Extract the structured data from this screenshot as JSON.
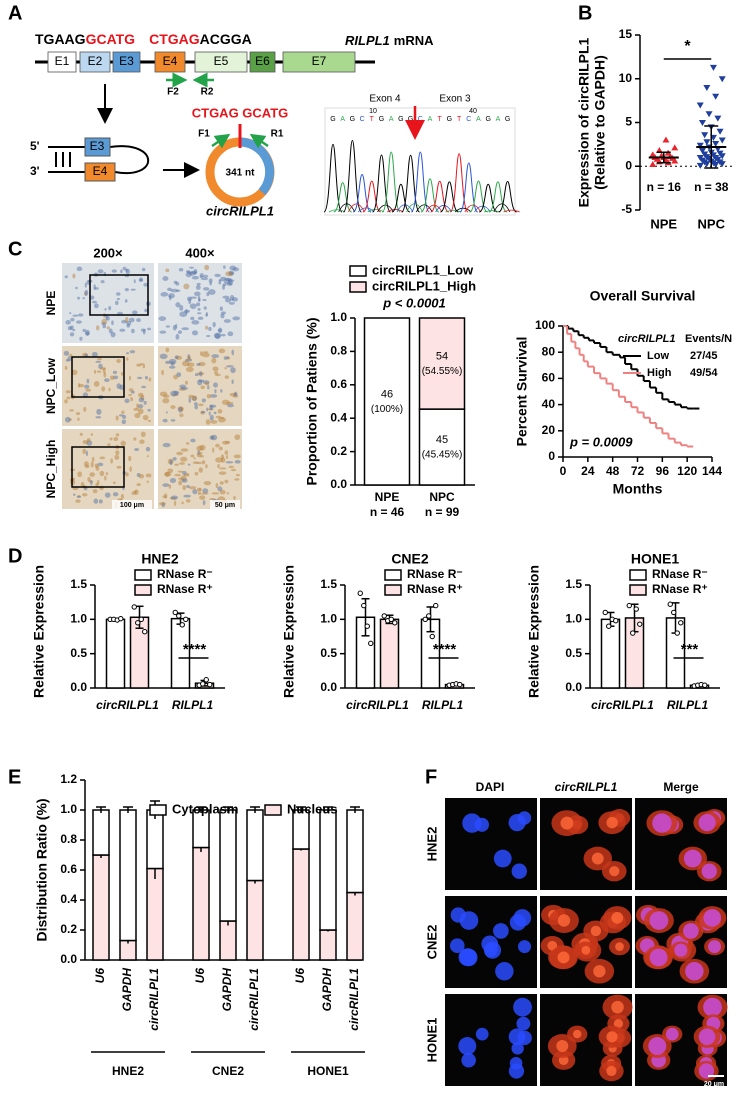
{
  "panel_labels": [
    "A",
    "B",
    "C",
    "D",
    "E",
    "F"
  ],
  "panel_a": {
    "sequence": [
      {
        "text": "TGAAG",
        "color": "#000000"
      },
      {
        "text": "GCATG",
        "color": "#e8141b"
      },
      {
        "text": "CTGAG",
        "color": "#e8141b"
      },
      {
        "text": "ACGGA",
        "color": "#000000"
      }
    ],
    "mrna_gene": "RILPL1",
    "mrna_label": "mRNA",
    "exons": [
      "E1",
      "E2",
      "E3",
      "E4",
      "E5",
      "E6",
      "E7"
    ],
    "primers_linear": [
      "F2",
      "R2"
    ],
    "ends": [
      "5'",
      "3'"
    ],
    "circle_exons": [
      "E3",
      "E4"
    ],
    "junction": "CTGAG GCATG",
    "primers_circ": [
      "F1",
      "R1"
    ],
    "size": "341 nt",
    "circ_name": "circRILPL1",
    "chromatogram": {
      "exon_left": "Exon 4",
      "exon_right": "Exon 3",
      "positions": [
        "10",
        "40"
      ],
      "bases": [
        "G",
        "A",
        "G",
        "C",
        "T",
        "G",
        "A",
        "G",
        "G",
        "C",
        "A",
        "T",
        "G",
        "T",
        "C",
        "A",
        "G",
        "A",
        "G"
      ]
    }
  },
  "panel_c_images": {
    "magnifications": [
      "200×",
      "400×"
    ],
    "rows": [
      "NPE",
      "NPC_Low",
      "NPC_High"
    ],
    "scale_bars": [
      "100 μm",
      "50 μm"
    ]
  },
  "panel_f": {
    "columns": [
      "DAPI",
      "circRILPL1",
      "Merge"
    ],
    "rows": [
      "HNE2",
      "CNE2",
      "HONE1"
    ],
    "scale_bar": "20 μm"
  },
  "chart_data": [
    {
      "type": "strip",
      "y_label": [
        "Expression of circRILPL1",
        "(Relative to GAPDH)"
      ],
      "categories": [
        "NPE",
        "NPC"
      ],
      "n_labels": [
        "n = 16",
        "n = 38"
      ],
      "colors": [
        "#e8262e",
        "#1f3f9e"
      ],
      "markers": [
        "triangle-up",
        "triangle-down"
      ],
      "values": [
        [
          0.2,
          0.4,
          0.5,
          0.6,
          0.7,
          0.8,
          0.9,
          1.0,
          1.0,
          1.1,
          1.2,
          1.3,
          1.5,
          1.8,
          2.1,
          3.0
        ],
        [
          0.1,
          0.2,
          0.3,
          0.3,
          0.4,
          0.5,
          0.5,
          0.6,
          0.7,
          0.8,
          0.9,
          1.0,
          1.0,
          1.1,
          1.2,
          1.3,
          1.4,
          1.5,
          1.6,
          1.8,
          2.0,
          2.2,
          2.4,
          2.6,
          2.8,
          3.0,
          3.3,
          3.6,
          4.0,
          4.5,
          5.0,
          5.5,
          6.0,
          7.0,
          8.0,
          9.0,
          10.0,
          11.3
        ]
      ],
      "means": [
        1.0,
        2.2
      ],
      "errors": [
        0.6,
        2.4
      ],
      "ylim": [
        -5,
        15
      ],
      "yticks": [
        -5,
        0,
        5,
        10,
        15
      ],
      "reference_line": 0,
      "significance": "*"
    },
    {
      "type": "stacked_bar",
      "y_label": "Proportion of Patiens (%)",
      "categories": [
        "NPE",
        "NPC"
      ],
      "n_labels": [
        "n = 46",
        "n = 99"
      ],
      "series": [
        {
          "name": "circRILPL1_Low",
          "color": "#ffffff",
          "values": [
            1.0,
            0.4545
          ],
          "count_labels": [
            "46",
            "45"
          ],
          "percent_labels": [
            "(100%)",
            "(45.45%)"
          ]
        },
        {
          "name": "circRILPL1_High",
          "color": "#fde3e3",
          "values": [
            0,
            0.5455
          ],
          "count_labels": [
            null,
            "54"
          ],
          "percent_labels": [
            null,
            "(54.55%)"
          ]
        }
      ],
      "ylim": [
        0,
        1.0
      ],
      "yticks": [
        {
          "value": 0,
          "label": "0.0"
        },
        0.2,
        0.4,
        0.6,
        0.8,
        {
          "value": 1.0,
          "label": "1.0"
        }
      ],
      "annotation": "p < 0.0001"
    },
    {
      "type": "step",
      "title": "Overall Survival",
      "x_label": "Months",
      "y_label": "Percent Survival",
      "legend_title": "circRILPL1",
      "legend_header": "Events/N",
      "series": [
        {
          "name": "Low",
          "events": "27/45",
          "color": "#000000",
          "x": [
            0,
            5,
            10,
            15,
            20,
            25,
            30,
            36,
            42,
            48,
            55,
            60,
            66,
            72,
            78,
            84,
            90,
            96,
            102,
            108,
            114,
            120,
            126
          ],
          "values": [
            100,
            98,
            96,
            93,
            91,
            89,
            87,
            84,
            80,
            78,
            76,
            71,
            67,
            62,
            58,
            53,
            49,
            44,
            42,
            40,
            38,
            37,
            37
          ]
        },
        {
          "name": "High",
          "events": "49/54",
          "color": "#f08080",
          "x": [
            0,
            4,
            8,
            12,
            16,
            20,
            24,
            30,
            36,
            42,
            48,
            54,
            60,
            66,
            72,
            78,
            84,
            90,
            96,
            102,
            108,
            114,
            120
          ],
          "values": [
            100,
            94,
            88,
            83,
            78,
            73,
            69,
            64,
            60,
            56,
            51,
            46,
            42,
            38,
            34,
            30,
            26,
            22,
            18,
            14,
            11,
            9,
            8
          ]
        }
      ],
      "xlim": [
        0,
        144
      ],
      "xticks": [
        0,
        24,
        48,
        72,
        96,
        120,
        144
      ],
      "ylim": [
        0,
        100
      ],
      "yticks": [
        0,
        20,
        40,
        60,
        80,
        100
      ],
      "annotation": "p = 0.0009"
    },
    {
      "type": "bar",
      "title": "HNE2",
      "y_label": "Relative Expression",
      "categories": [
        "circRILPL1",
        "RILPL1"
      ],
      "series": [
        {
          "name": "RNase R⁻",
          "color": "#ffffff",
          "values": [
            1.0,
            1.01
          ],
          "errors": [
            0.01,
            0.08
          ],
          "points": [
            [
              1.0,
              1.0,
              0.99,
              1.01
            ],
            [
              1.1,
              1.05,
              0.92,
              1.0
            ]
          ]
        },
        {
          "name": "RNase R⁺",
          "color": "#fde3e3",
          "values": [
            1.03,
            0.07
          ],
          "errors": [
            0.16,
            0.04
          ],
          "points": [
            [
              1.18,
              0.95,
              1.0,
              0.82
            ],
            [
              0.04,
              0.06,
              0.12,
              0.05
            ]
          ]
        }
      ],
      "ylim": [
        0,
        1.5
      ],
      "yticks": [
        {
          "value": 0,
          "label": "0.0"
        },
        0.5,
        {
          "value": 1.0,
          "label": "1.0"
        },
        1.5
      ],
      "significance": "****"
    },
    {
      "type": "bar",
      "title": "CNE2",
      "y_label": "Relative Expression",
      "categories": [
        "circRILPL1",
        "RILPL1"
      ],
      "series": [
        {
          "name": "RNase R⁻",
          "color": "#ffffff",
          "values": [
            1.03,
            1.0
          ],
          "errors": [
            0.27,
            0.18
          ],
          "points": [
            [
              1.38,
              1.2,
              0.9,
              0.65
            ],
            [
              1.0,
              1.05,
              0.75,
              1.2
            ]
          ]
        },
        {
          "name": "RNase R⁺",
          "color": "#fde3e3",
          "values": [
            1.0,
            0.05
          ],
          "errors": [
            0.06,
            0.01
          ],
          "points": [
            [
              1.05,
              0.98,
              1.0,
              0.95
            ],
            [
              0.04,
              0.05,
              0.06,
              0.05
            ]
          ]
        }
      ],
      "ylim": [
        0,
        1.5
      ],
      "yticks": [
        {
          "value": 0,
          "label": "0.0"
        },
        0.5,
        {
          "value": 1.0,
          "label": "1.0"
        },
        1.5
      ],
      "significance": "****"
    },
    {
      "type": "bar",
      "title": "HONE1",
      "y_label": "Relative Expression",
      "categories": [
        "circRILPL1",
        "RILPL1"
      ],
      "series": [
        {
          "name": "RNase R⁻",
          "color": "#ffffff",
          "values": [
            1.0,
            1.02
          ],
          "errors": [
            0.1,
            0.22
          ],
          "points": [
            [
              1.1,
              0.9,
              1.0,
              0.98
            ],
            [
              1.22,
              1.1,
              0.8,
              0.95
            ]
          ]
        },
        {
          "name": "RNase R⁺",
          "color": "#fde3e3",
          "values": [
            1.02,
            0.04
          ],
          "errors": [
            0.2,
            0.01
          ],
          "points": [
            [
              1.2,
              0.8,
              1.15,
              0.93
            ],
            [
              0.03,
              0.04,
              0.05,
              0.04
            ]
          ]
        }
      ],
      "ylim": [
        0,
        1.5
      ],
      "yticks": [
        {
          "value": 0,
          "label": "0.0"
        },
        0.5,
        {
          "value": 1.0,
          "label": "1.0"
        },
        1.5
      ],
      "significance": "***"
    },
    {
      "type": "stacked_bar",
      "y_label": "Distribution Ratio (%)",
      "categories": [
        "U6",
        "GAPDH",
        "circRILPL1",
        "U6",
        "GAPDH",
        "circRILPL1",
        "U6",
        "GAPDH",
        "circRILPL1"
      ],
      "group_labels": [
        "HNE2",
        "CNE2",
        "HONE1"
      ],
      "series": [
        {
          "name": "Cytoplasm",
          "color": "#ffffff",
          "values": [
            0.3,
            0.87,
            0.39,
            0.25,
            0.74,
            0.47,
            0.26,
            0.8,
            0.55
          ],
          "errors": [
            0.02,
            0.02,
            0.06,
            0.02,
            0.02,
            0.02,
            0.02,
            0.02,
            0.02
          ]
        },
        {
          "name": "Nucleus",
          "color": "#fde3e3",
          "values": [
            0.7,
            0.13,
            0.61,
            0.75,
            0.26,
            0.53,
            0.74,
            0.2,
            0.45
          ],
          "errors": [
            0.02,
            0.02,
            0.07,
            0.03,
            0.03,
            0.02,
            0.01,
            0.01,
            0.02
          ]
        }
      ],
      "ylim": [
        0,
        1.2
      ],
      "yticks": [
        {
          "value": 0,
          "label": "0.0"
        },
        0.2,
        0.4,
        0.6,
        0.8,
        {
          "value": 1.0,
          "label": "1.0"
        },
        1.2
      ]
    }
  ]
}
